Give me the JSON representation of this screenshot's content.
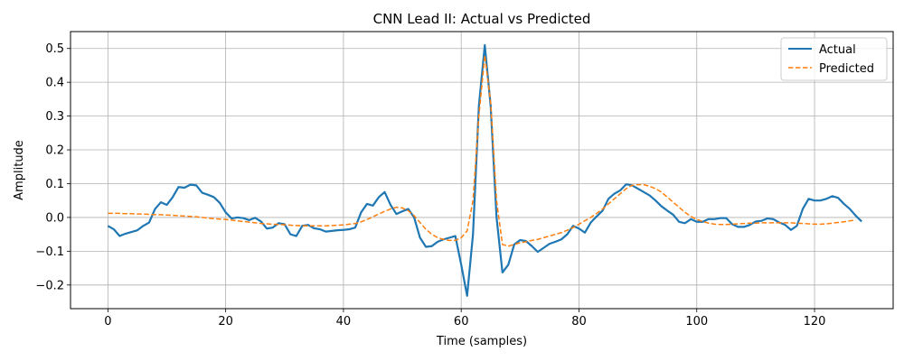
{
  "chart_data": {
    "type": "line",
    "title": "CNN Lead II: Actual vs Predicted",
    "xlabel": "Time (samples)",
    "ylabel": "Amplitude",
    "xlim": [
      -6.35,
      133.35
    ],
    "ylim": [
      -0.27,
      0.55
    ],
    "xticks": [
      0,
      20,
      40,
      60,
      80,
      100,
      120
    ],
    "yticks": [
      -0.2,
      -0.1,
      0.0,
      0.1,
      0.2,
      0.3,
      0.4,
      0.5
    ],
    "xtick_labels": [
      "0",
      "20",
      "40",
      "60",
      "80",
      "100",
      "120"
    ],
    "ytick_labels": [
      "−0.2",
      "−0.1",
      "0.0",
      "0.1",
      "0.2",
      "0.3",
      "0.4",
      "0.5"
    ],
    "grid": true,
    "legend_position": "top-right",
    "series": [
      {
        "name": "Actual",
        "color": "#1f77b4",
        "style": "solid",
        "values": [
          -0.025,
          -0.035,
          -0.055,
          -0.048,
          -0.043,
          -0.038,
          -0.025,
          -0.015,
          0.025,
          0.045,
          0.037,
          0.06,
          0.09,
          0.088,
          0.097,
          0.095,
          0.073,
          0.067,
          0.06,
          0.043,
          0.015,
          -0.003,
          0.0,
          -0.002,
          -0.008,
          -0.001,
          -0.012,
          -0.033,
          -0.03,
          -0.017,
          -0.02,
          -0.05,
          -0.055,
          -0.025,
          -0.022,
          -0.032,
          -0.035,
          -0.042,
          -0.04,
          -0.038,
          -0.037,
          -0.035,
          -0.03,
          0.015,
          0.04,
          0.035,
          0.06,
          0.075,
          0.037,
          0.01,
          0.018,
          0.025,
          0.0,
          -0.06,
          -0.087,
          -0.085,
          -0.072,
          -0.065,
          -0.06,
          -0.055,
          -0.14,
          -0.232,
          -0.05,
          0.33,
          0.51,
          0.33,
          0.0,
          -0.163,
          -0.14,
          -0.08,
          -0.067,
          -0.07,
          -0.085,
          -0.102,
          -0.09,
          -0.078,
          -0.072,
          -0.065,
          -0.05,
          -0.025,
          -0.033,
          -0.045,
          -0.015,
          0.003,
          0.02,
          0.055,
          0.07,
          0.08,
          0.098,
          0.095,
          0.085,
          0.075,
          0.065,
          0.05,
          0.033,
          0.02,
          0.008,
          -0.013,
          -0.017,
          -0.005,
          -0.013,
          -0.013,
          -0.005,
          -0.005,
          -0.002,
          -0.002,
          -0.02,
          -0.028,
          -0.028,
          -0.022,
          -0.012,
          -0.01,
          -0.003,
          -0.005,
          -0.015,
          -0.022,
          -0.037,
          -0.025,
          0.025,
          0.055,
          0.05,
          0.05,
          0.055,
          0.063,
          0.058,
          0.04,
          0.025,
          0.005,
          -0.012
        ]
      },
      {
        "name": "Predicted",
        "color": "#ff7f0e",
        "style": "dashed",
        "values": [
          0.012,
          0.012,
          0.012,
          0.011,
          0.011,
          0.01,
          0.01,
          0.009,
          0.008,
          0.008,
          0.007,
          0.006,
          0.005,
          0.004,
          0.003,
          0.002,
          0.0,
          -0.002,
          -0.004,
          -0.005,
          -0.006,
          -0.008,
          -0.01,
          -0.012,
          -0.014,
          -0.016,
          -0.018,
          -0.019,
          -0.02,
          -0.021,
          -0.022,
          -0.023,
          -0.024,
          -0.025,
          -0.025,
          -0.025,
          -0.025,
          -0.025,
          -0.024,
          -0.023,
          -0.022,
          -0.02,
          -0.018,
          -0.013,
          -0.006,
          0.002,
          0.01,
          0.018,
          0.025,
          0.03,
          0.028,
          0.02,
          0.005,
          -0.015,
          -0.035,
          -0.05,
          -0.06,
          -0.065,
          -0.068,
          -0.068,
          -0.06,
          -0.04,
          0.05,
          0.3,
          0.48,
          0.34,
          0.05,
          -0.08,
          -0.085,
          -0.08,
          -0.075,
          -0.072,
          -0.068,
          -0.065,
          -0.06,
          -0.055,
          -0.05,
          -0.045,
          -0.038,
          -0.03,
          -0.02,
          -0.01,
          0.0,
          0.012,
          0.025,
          0.04,
          0.055,
          0.07,
          0.085,
          0.095,
          0.097,
          0.097,
          0.092,
          0.085,
          0.075,
          0.06,
          0.045,
          0.03,
          0.015,
          0.003,
          -0.006,
          -0.012,
          -0.017,
          -0.02,
          -0.021,
          -0.021,
          -0.02,
          -0.019,
          -0.018,
          -0.017,
          -0.017,
          -0.016,
          -0.016,
          -0.016,
          -0.016,
          -0.016,
          -0.016,
          -0.017,
          -0.018,
          -0.019,
          -0.02,
          -0.02,
          -0.019,
          -0.017,
          -0.015,
          -0.013,
          -0.01,
          -0.008
        ]
      }
    ]
  }
}
